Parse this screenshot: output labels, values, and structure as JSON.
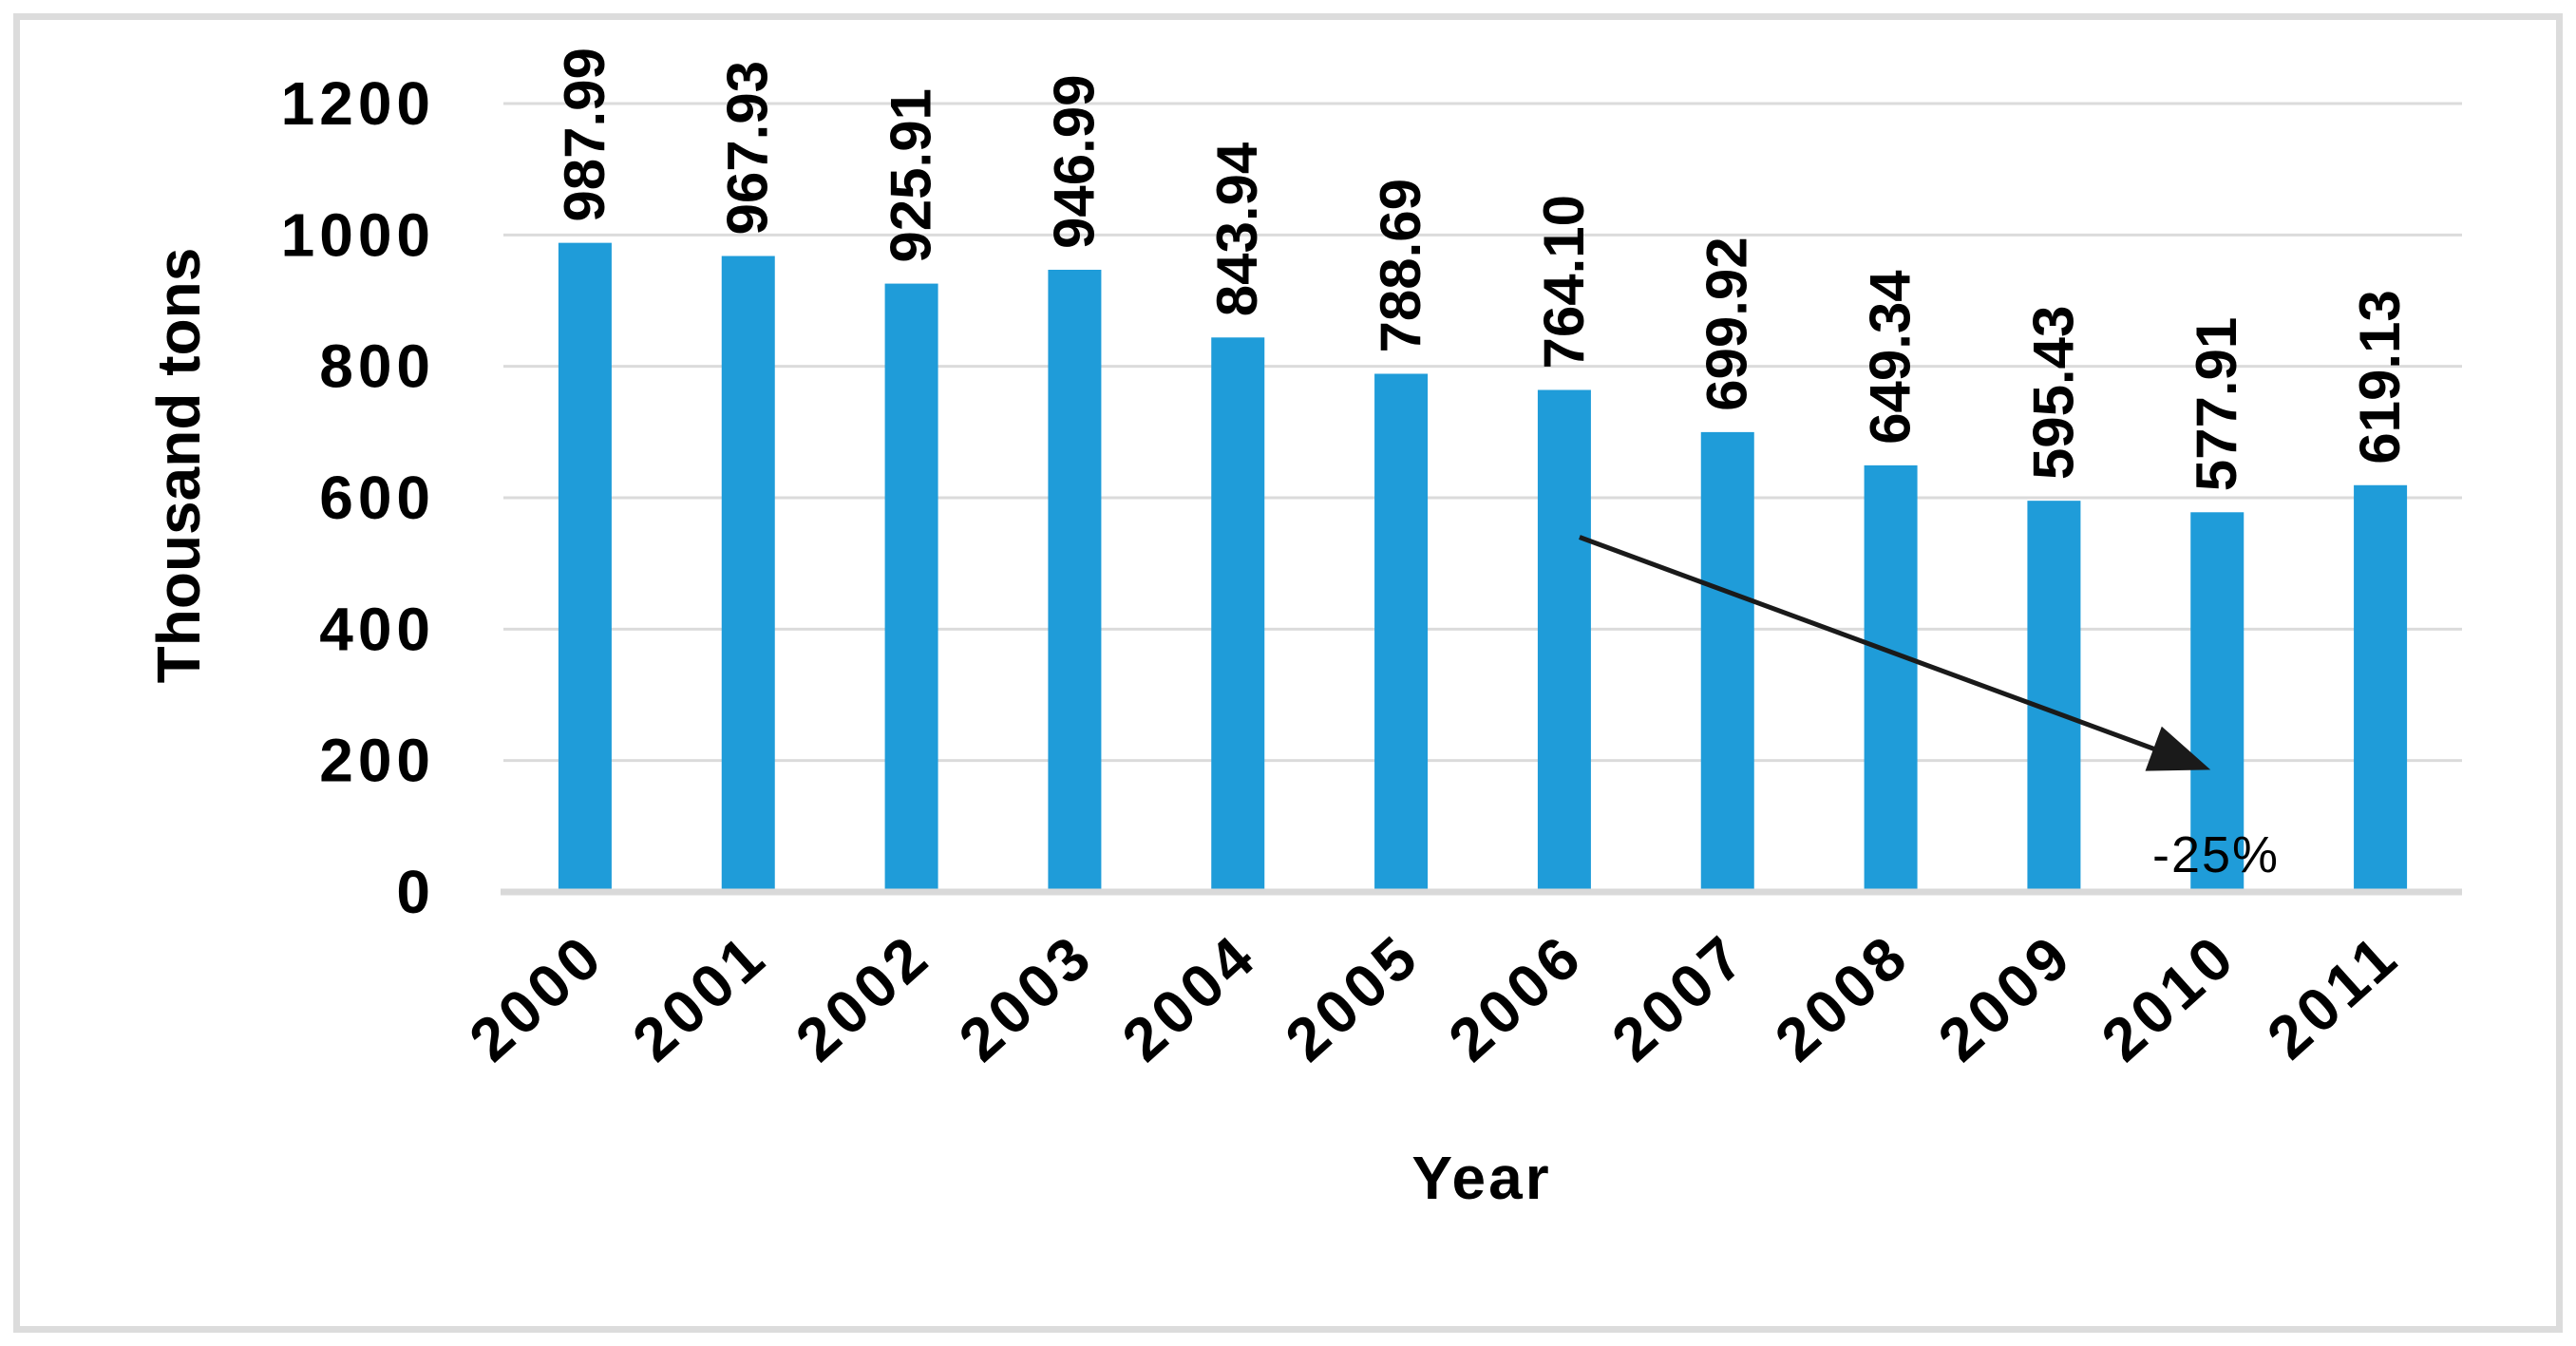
{
  "figure": {
    "background_color": "#ffffff",
    "border_color": "#dcdcdc"
  },
  "chart_data": {
    "type": "bar",
    "title": "",
    "categories": [
      "2000",
      "2001",
      "2002",
      "2003",
      "2004",
      "2005",
      "2006",
      "2007",
      "2008",
      "2009",
      "2010",
      "2011"
    ],
    "values": [
      987.99,
      967.93,
      925.91,
      946.99,
      843.94,
      788.69,
      764.1,
      699.92,
      649.34,
      595.43,
      577.91,
      619.13
    ],
    "bar_labels": [
      "987.99",
      "967.93",
      "925.91",
      "946.99",
      "843.94",
      "788.69",
      "764.10",
      "699.92",
      "649.34",
      "595.43",
      "577.91",
      "619.13"
    ],
    "xlabel": "Year",
    "ylabel": "Thousand tons",
    "ylim": [
      0,
      1200
    ],
    "yticks": [
      0,
      200,
      400,
      600,
      800,
      1000,
      1200
    ],
    "ytick_labels": [
      "0",
      "200",
      "400",
      "600",
      "800",
      "1000",
      "1200"
    ],
    "grid": true,
    "legend": false,
    "bar_color": "#1f9cd9",
    "gridline_color": "#dbdbdb",
    "axis_line_color": "#d9d9d9",
    "text_color": "#000000",
    "annotation": {
      "label": "-25%",
      "arrow_color": "#1a1a1a",
      "from_category": "2006",
      "from_value": 540,
      "to_category": "2010",
      "to_value": 186
    }
  }
}
